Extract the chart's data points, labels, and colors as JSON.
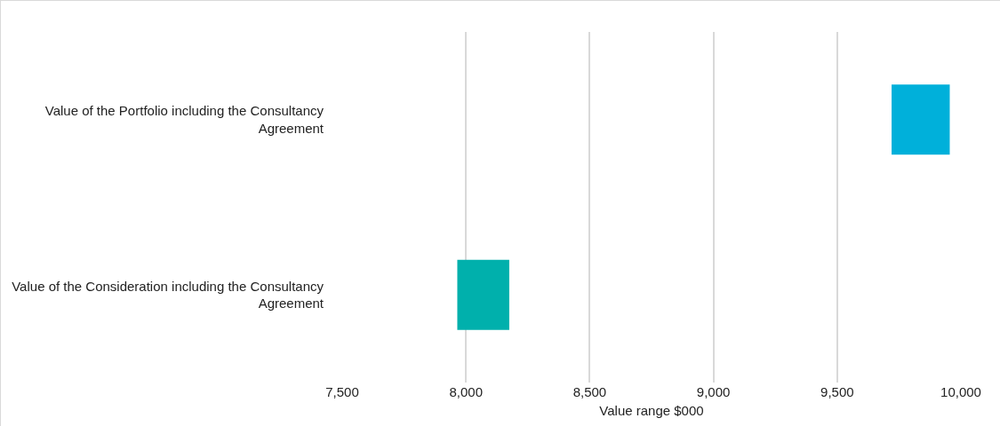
{
  "chart_data": {
    "type": "bar",
    "orientation": "horizontal",
    "categories": [
      "Value of the Portfolio including the Consultancy Agreement",
      "Value of the Consideration including the Consultancy Agreement"
    ],
    "base": [
      9720,
      7965
    ],
    "values": [
      235,
      210
    ],
    "colors": [
      "#00b0da",
      "#00b0ac"
    ],
    "xlabel": "Value range $000",
    "xlim": [
      7500,
      10000
    ],
    "xticks": [
      {
        "value": 7500,
        "label": "7,500"
      },
      {
        "value": 8000,
        "label": "8,000"
      },
      {
        "value": 8500,
        "label": "8,500"
      },
      {
        "value": 9000,
        "label": "9,000"
      },
      {
        "value": 9500,
        "label": "9,500"
      },
      {
        "value": 10000,
        "label": "10,000"
      }
    ],
    "grid": "x"
  }
}
